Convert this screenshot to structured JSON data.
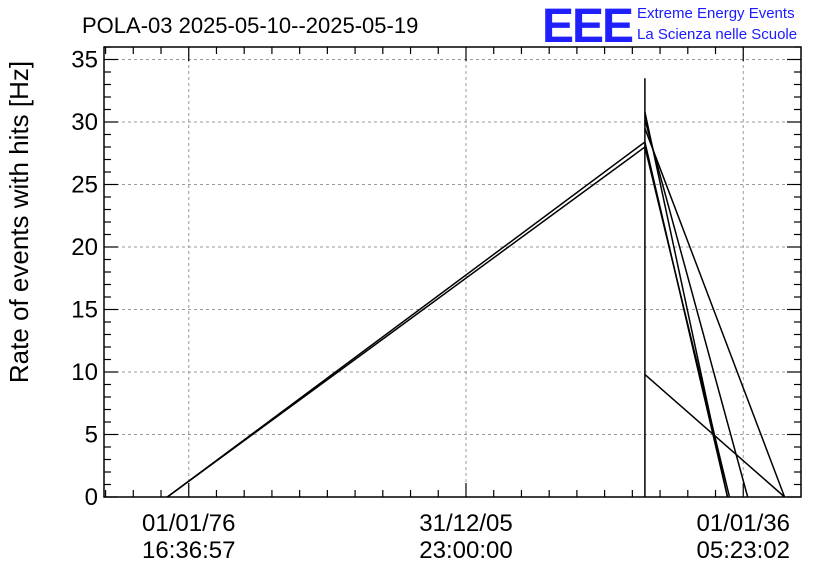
{
  "title": "POLA-03 2025-05-10--2025-05-19",
  "logo": {
    "mark": "EEE",
    "line1": "Extreme Energy Events",
    "line2": "La Scienza nelle Scuole",
    "color": "#1a1aff"
  },
  "chart_data": {
    "type": "line",
    "title": "POLA-03 2025-05-10--2025-05-19",
    "xlabel": "",
    "ylabel": "Rate of events with hits [Hz]",
    "ylim": [
      0,
      36
    ],
    "y_ticks": [
      0,
      5,
      10,
      15,
      20,
      25,
      30,
      35
    ],
    "x_unit": "seconds since 1970-01-01 (UTC)",
    "xlim": [
      -100000000,
      2280000000
    ],
    "x_ticks": [
      {
        "value": 189362217,
        "date": "01/01/76",
        "time": "16:36:57"
      },
      {
        "value": 1136070000,
        "date": "31/12/05",
        "time": "23:00:00"
      },
      {
        "value": 2082777782,
        "date": "01/01/36",
        "time": "05:23:02"
      }
    ],
    "x_minor_step": 189341553,
    "grid": true,
    "legend": "none",
    "series": [
      {
        "points": [
          [
            116000000,
            0
          ],
          [
            1747000000,
            28.4
          ],
          [
            2029000000,
            0
          ]
        ]
      },
      {
        "points": [
          [
            116000000,
            0
          ],
          [
            1747000000,
            28.0
          ],
          [
            2036000000,
            0
          ]
        ]
      },
      {
        "points": [
          [
            1747000000,
            0
          ],
          [
            1747000000,
            33.5
          ]
        ]
      },
      {
        "points": [
          [
            1747000000,
            30.8
          ],
          [
            2029000000,
            0
          ]
        ]
      },
      {
        "points": [
          [
            1747000000,
            30.2
          ],
          [
            2098000000,
            0
          ]
        ]
      },
      {
        "points": [
          [
            1747000000,
            29.5
          ],
          [
            2224000000,
            0
          ]
        ]
      },
      {
        "points": [
          [
            1747000000,
            9.8
          ],
          [
            2224000000,
            0
          ]
        ]
      }
    ]
  }
}
